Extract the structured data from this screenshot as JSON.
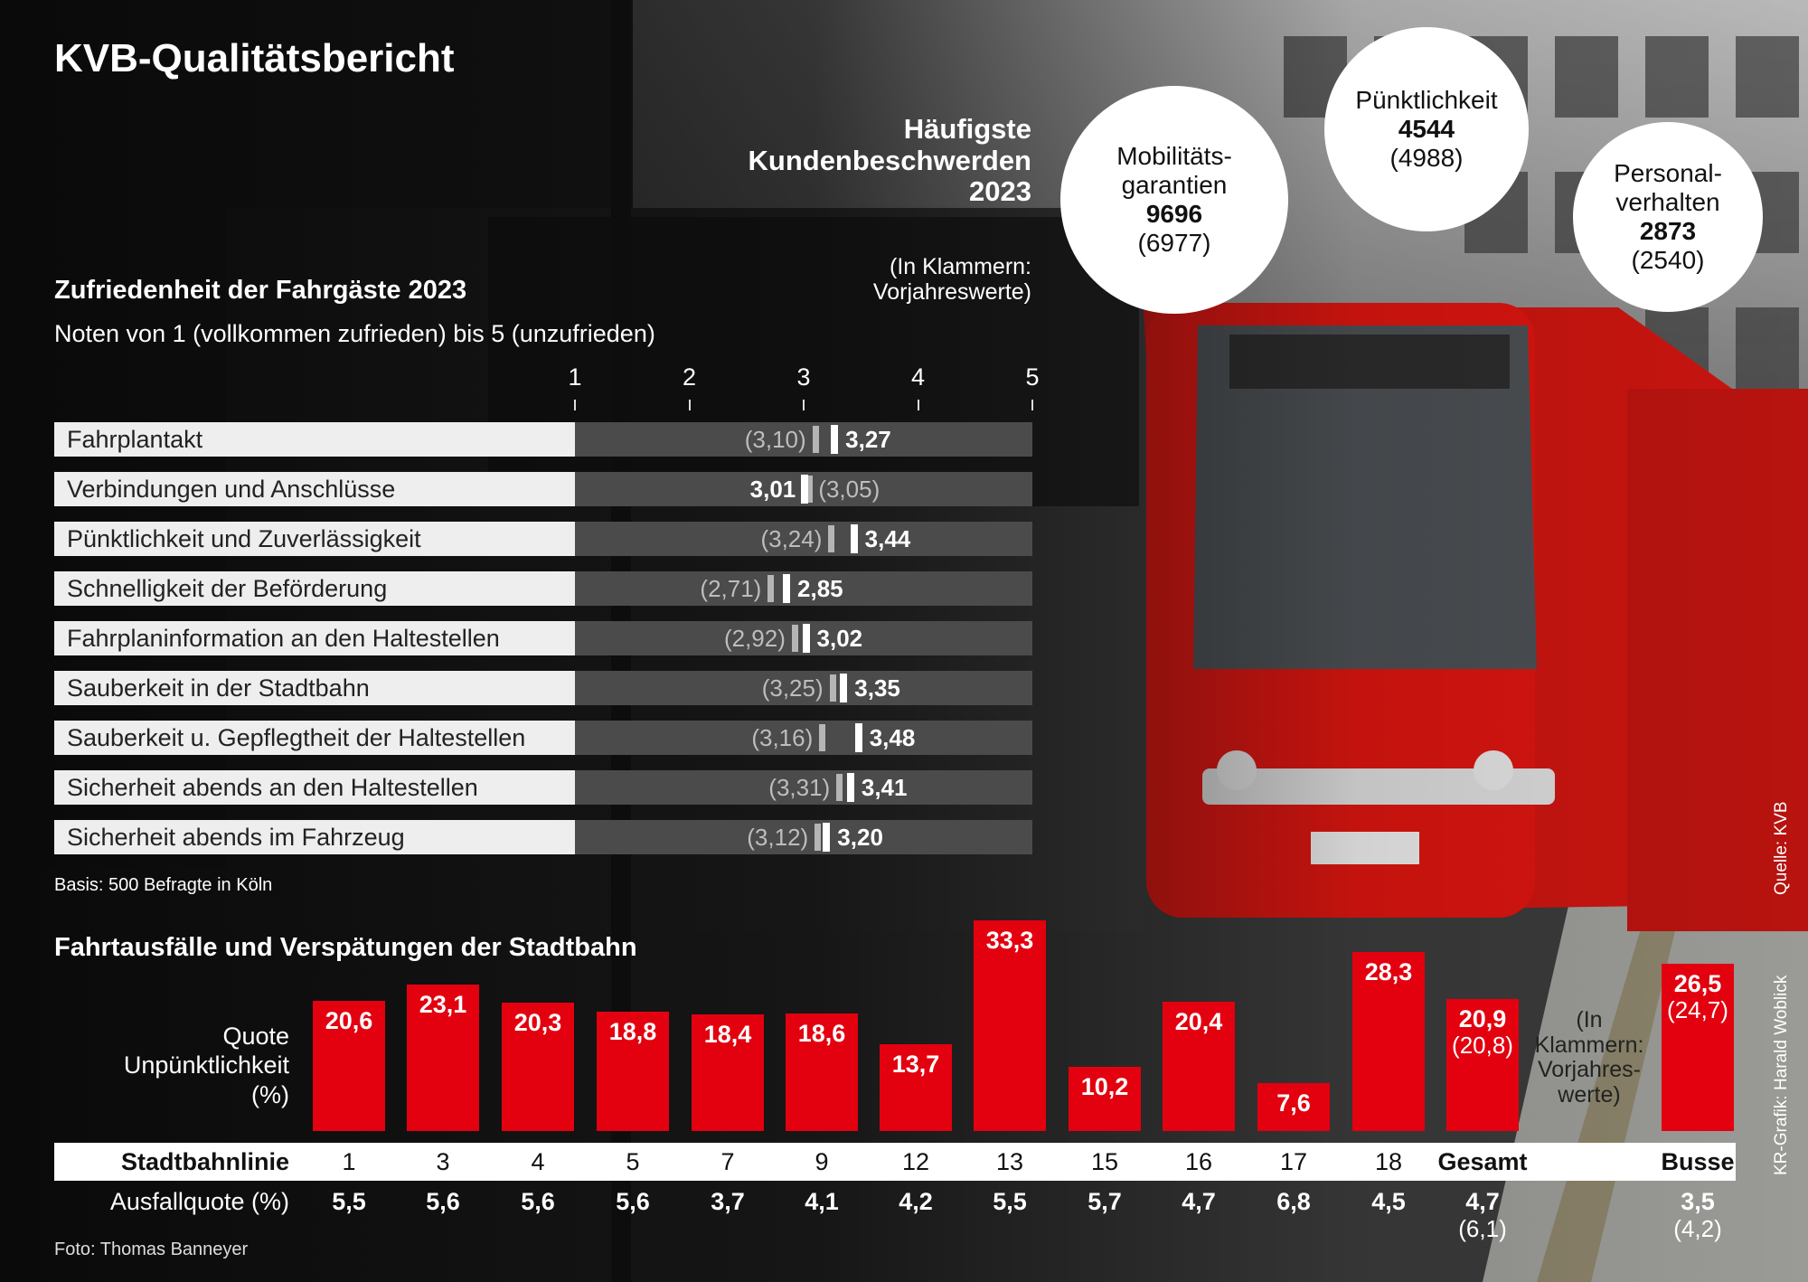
{
  "title": "KVB-Qualitätsbericht",
  "complaints": {
    "heading": "Häufigste Kundenbeschwerden 2023",
    "note": "(In Klammern: Vorjahreswerte)",
    "items": [
      {
        "label": "Mobilitäts-garantien",
        "value": "9696",
        "prev": "(6977)"
      },
      {
        "label": "Pünktlichkeit",
        "value": "4544",
        "prev": "(4988)"
      },
      {
        "label": "Personal-verhalten",
        "value": "2873",
        "prev": "(2540)"
      }
    ]
  },
  "satisfaction": {
    "title": "Zufriedenheit der Fahrgäste 2023",
    "subtitle": "Noten von 1 (vollkommen zufrieden) bis 5 (unzufrieden)",
    "scale": [
      "1",
      "2",
      "3",
      "4",
      "5"
    ],
    "basis": "Basis: 500 Befragte in Köln"
  },
  "delays": {
    "title": "Fahrtausfälle und Verspätungen der Stadtbahn",
    "quote_label": "Quote Unpünktlichkeit (%)",
    "bars_note": "(In Klammern: Vorjahres-werte)",
    "row_label_lines": "Stadtbahnlinie",
    "row_label_ausfall": "Ausfallquote (%)"
  },
  "chart_data": [
    {
      "type": "bar",
      "orientation": "horizontal",
      "title": "Zufriedenheit der Fahrgäste 2023",
      "categories": [
        "Fahrplantakt",
        "Verbindungen und Anschlüsse",
        "Pünktlichkeit und Zuverlässigkeit",
        "Schnelligkeit der Beförderung",
        "Fahrplaninformation an den Haltestellen",
        "Sauberkeit in der Stadtbahn",
        "Sauberkeit u. Gepflegtheit der Haltestellen",
        "Sicherheit abends an den Haltestellen",
        "Sicherheit abends im Fahrzeug"
      ],
      "series": [
        {
          "name": "2023",
          "values": [
            3.27,
            3.01,
            3.44,
            2.85,
            3.02,
            3.35,
            3.48,
            3.41,
            3.2
          ],
          "labels": [
            "3,27",
            "3,01",
            "3,44",
            "2,85",
            "3,02",
            "3,35",
            "3,48",
            "3,41",
            "3,20"
          ]
        },
        {
          "name": "Vorjahr",
          "values": [
            3.1,
            3.05,
            3.24,
            2.71,
            2.92,
            3.25,
            3.16,
            3.31,
            3.12
          ],
          "labels": [
            "(3,10)",
            "(3,05)",
            "(3,24)",
            "(2,71)",
            "(2,92)",
            "(3,25)",
            "(3,16)",
            "(3,31)",
            "(3,12)"
          ]
        }
      ],
      "xlim": [
        1,
        5
      ]
    },
    {
      "type": "bar",
      "title": "Fahrtausfälle und Verspätungen der Stadtbahn",
      "ylabel": "Quote Unpünktlichkeit (%)",
      "categories": [
        "1",
        "3",
        "4",
        "5",
        "7",
        "9",
        "12",
        "13",
        "15",
        "16",
        "17",
        "18",
        "Gesamt",
        "Busse"
      ],
      "series": [
        {
          "name": "Quote Unpünktlichkeit (%)",
          "values": [
            20.6,
            23.1,
            20.3,
            18.8,
            18.4,
            18.6,
            13.7,
            33.3,
            10.2,
            20.4,
            7.6,
            28.3,
            20.9,
            26.5
          ],
          "labels": [
            "20,6",
            "23,1",
            "20,3",
            "18,8",
            "18,4",
            "18,6",
            "13,7",
            "33,3",
            "10,2",
            "20,4",
            "7,6",
            "28,3",
            "20,9",
            "26,5"
          ],
          "prev_labels": [
            "",
            "",
            "",
            "",
            "",
            "",
            "",
            "",
            "",
            "",
            "",
            "",
            "(20,8)",
            "(24,7)"
          ]
        },
        {
          "name": "Ausfallquote (%)",
          "values": [
            5.5,
            5.6,
            5.6,
            5.6,
            3.7,
            4.1,
            4.2,
            5.5,
            5.7,
            4.7,
            6.8,
            4.5,
            4.7,
            3.5
          ],
          "labels": [
            "5,5",
            "5,6",
            "5,6",
            "5,6",
            "3,7",
            "4,1",
            "4,2",
            "5,5",
            "5,7",
            "4,7",
            "6,8",
            "4,5",
            "4,7",
            "3,5"
          ],
          "prev_labels": [
            "",
            "",
            "",
            "",
            "",
            "",
            "",
            "",
            "",
            "",
            "",
            "",
            "(6,1)",
            "(4,2)"
          ]
        }
      ]
    }
  ],
  "credits": {
    "photo": "Foto: Thomas Banneyer",
    "source": "Quelle: KVB",
    "graphic": "KR-Grafik: Harald Woblick"
  },
  "colors": {
    "accent_red": "#e3000f",
    "bar_gray": "#4b4b4b",
    "label_bg": "#eeeeee"
  }
}
